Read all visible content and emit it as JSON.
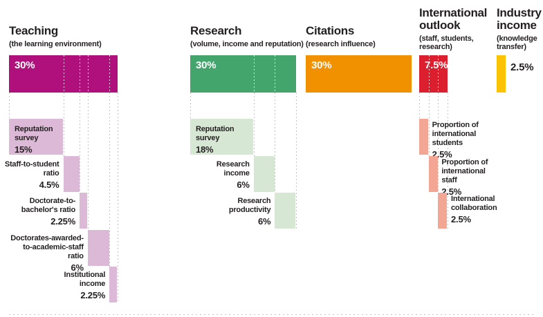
{
  "page": {
    "background": "#ffffff",
    "text_color": "#231f20",
    "dotted_line_color": "#c3c3c3"
  },
  "chart_data": {
    "type": "bar",
    "subtype": "weighting-waterfall-breakdown",
    "unit": "%",
    "description_visible_text_only": true,
    "columns": [
      {
        "id": "teaching",
        "title_lines": [
          "Teaching"
        ],
        "subtitle_lines": [
          "(the learning environment)"
        ],
        "weight": 30,
        "weight_label": "30%",
        "weight_label_placement": "inside",
        "bar_color": "#af107b",
        "sub_color": "#dcb9d6",
        "subcomponents": [
          {
            "name_lines": [
              "Reputation",
              "survey"
            ],
            "value": 15,
            "value_label": "15%",
            "label_placement": "inside"
          },
          {
            "name_lines": [
              "Staff-to-student",
              "ratio"
            ],
            "value": 4.5,
            "value_label": "4.5%",
            "label_placement": "left"
          },
          {
            "name_lines": [
              "Doctorate-to-",
              "bachelor's ratio"
            ],
            "value": 2.25,
            "value_label": "2.25%",
            "label_placement": "left"
          },
          {
            "name_lines": [
              "Doctorates-awarded-",
              "to-academic-staff",
              "ratio"
            ],
            "value": 6,
            "value_label": "6%",
            "label_placement": "left"
          },
          {
            "name_lines": [
              "Institutional",
              "income"
            ],
            "value": 2.25,
            "value_label": "2.25%",
            "label_placement": "left"
          }
        ]
      },
      {
        "id": "research",
        "title_lines": [
          "Research"
        ],
        "subtitle_lines": [
          "(volume, income and reputation)"
        ],
        "weight": 30,
        "weight_label": "30%",
        "weight_label_placement": "inside",
        "bar_color": "#43a56c",
        "sub_color": "#d6e7d4",
        "subcomponents": [
          {
            "name_lines": [
              "Reputation",
              "survey"
            ],
            "value": 18,
            "value_label": "18%",
            "label_placement": "inside"
          },
          {
            "name_lines": [
              "Research",
              "income"
            ],
            "value": 6,
            "value_label": "6%",
            "label_placement": "left"
          },
          {
            "name_lines": [
              "Research",
              "productivity"
            ],
            "value": 6,
            "value_label": "6%",
            "label_placement": "left"
          }
        ]
      },
      {
        "id": "citations",
        "title_lines": [
          "Citations"
        ],
        "subtitle_lines": [
          "(research influence)"
        ],
        "weight": 30,
        "weight_label": "30%",
        "weight_label_placement": "inside",
        "bar_color": "#f19100",
        "sub_color": "#f19100",
        "subcomponents": []
      },
      {
        "id": "international",
        "title_lines": [
          "International",
          "outlook"
        ],
        "subtitle_lines": [
          "(staff, students,",
          "research)"
        ],
        "weight": 7.5,
        "weight_label": "7.5%",
        "weight_label_placement": "inside",
        "bar_color": "#dc1f2e",
        "sub_color": "#f2a693",
        "subcomponents": [
          {
            "name_lines": [
              "Proportion of",
              "international",
              "students"
            ],
            "value": 2.5,
            "value_label": "2.5%",
            "label_placement": "right"
          },
          {
            "name_lines": [
              "Proportion of",
              "international",
              "staff"
            ],
            "value": 2.5,
            "value_label": "2.5%",
            "label_placement": "right"
          },
          {
            "name_lines": [
              "International",
              "collaboration"
            ],
            "value": 2.5,
            "value_label": "2.5%",
            "label_placement": "right"
          }
        ]
      },
      {
        "id": "industry",
        "title_lines": [
          "Industry",
          "income"
        ],
        "subtitle_lines": [
          "(knowledge",
          "transfer)"
        ],
        "weight": 2.5,
        "weight_label": "2.5%",
        "weight_label_placement": "right",
        "bar_color": "#fbc303",
        "sub_color": "#fbc303",
        "subcomponents": []
      }
    ]
  }
}
